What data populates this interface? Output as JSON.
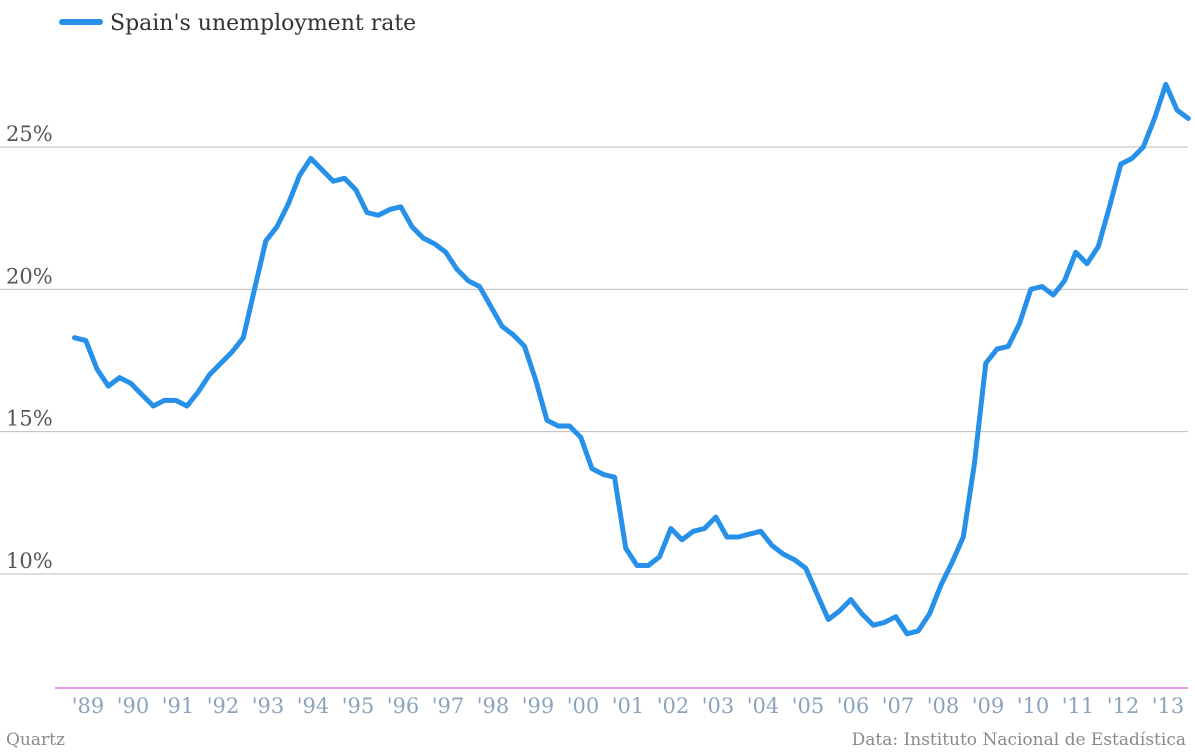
{
  "chart_data": {
    "type": "line",
    "legend_position": "top-left",
    "grid": "horizontal",
    "x_unit_years_start": 1988.7,
    "x_step_quarter": 0.25,
    "ylim": [
      6,
      30
    ],
    "yticks": [
      10,
      15,
      20,
      25
    ],
    "ytick_labels": [
      "10%",
      "15%",
      "20%",
      "25%"
    ],
    "xticks": [
      "'89",
      "'90",
      "'91",
      "'92",
      "'93",
      "'94",
      "'95",
      "'96",
      "'97",
      "'98",
      "'99",
      "'00",
      "'01",
      "'02",
      "'03",
      "'04",
      "'05",
      "'06",
      "'07",
      "'08",
      "'09",
      "'10",
      "'11",
      "'12",
      "'13"
    ],
    "series": [
      {
        "name": "Spain's unemployment rate",
        "color": "#2790e8",
        "values": [
          18.3,
          18.2,
          17.2,
          16.6,
          16.9,
          16.7,
          16.3,
          15.9,
          16.1,
          16.1,
          15.9,
          16.4,
          17.0,
          17.4,
          17.8,
          18.3,
          20.0,
          21.7,
          22.2,
          23.0,
          24.0,
          24.6,
          24.2,
          23.8,
          23.9,
          23.5,
          22.7,
          22.6,
          22.8,
          22.9,
          22.2,
          21.8,
          21.6,
          21.3,
          20.7,
          20.3,
          20.1,
          19.4,
          18.7,
          18.4,
          18.0,
          16.8,
          15.4,
          15.2,
          15.2,
          14.8,
          13.7,
          13.5,
          13.4,
          10.9,
          10.3,
          10.3,
          10.6,
          11.6,
          11.2,
          11.5,
          11.6,
          12.0,
          11.3,
          11.3,
          11.4,
          11.5,
          11.0,
          10.7,
          10.5,
          10.2,
          9.3,
          8.4,
          8.7,
          9.1,
          8.6,
          8.2,
          8.3,
          8.5,
          7.9,
          8.0,
          8.6,
          9.6,
          10.4,
          11.3,
          13.9,
          17.4,
          17.9,
          18.0,
          18.8,
          20.0,
          20.1,
          19.8,
          20.3,
          21.3,
          20.9,
          21.5,
          22.9,
          24.4,
          24.6,
          25.0,
          26.0,
          27.2,
          26.3,
          26.0
        ]
      }
    ]
  },
  "credits": {
    "source_left": "Quartz",
    "source_right": "Data: Instituto Nacional de Estadística"
  }
}
